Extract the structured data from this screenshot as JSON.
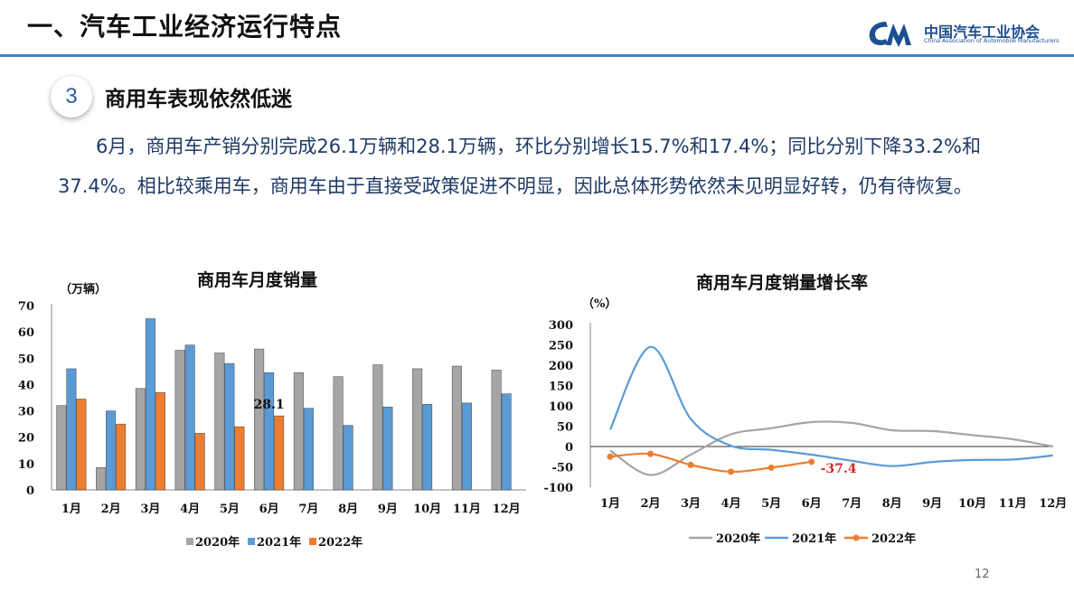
{
  "header": {
    "title": "一、汽车工业经济运行特点",
    "logo_cn": "中国汽车工业协会",
    "logo_en": "China Association of Automobile Manufacturers"
  },
  "section": {
    "number": "3",
    "title": "商用车表现依然低迷"
  },
  "body_text": "6月，商用车产销分别完成26.1万辆和28.1万辆，环比分别增长15.7%和17.4%；同比分别下降33.2%和37.4%。相比较乘用车，商用车由于直接受政策促进不明显，因此总体形势依然未见明显好转，仍有待恢复。",
  "page_number": "12",
  "colors": {
    "c2020": "#a5a5a5",
    "c2021": "#5b9bd5",
    "c2022": "#ed7d31",
    "rule": "#3a86c8"
  },
  "chart_data": [
    {
      "type": "bar",
      "title": "商用车月度销量",
      "ylabel": "（万辆）",
      "ylim": [
        0,
        70
      ],
      "yticks": [
        0,
        10,
        20,
        30,
        40,
        50,
        60,
        70
      ],
      "categories": [
        "1月",
        "2月",
        "3月",
        "4月",
        "5月",
        "6月",
        "7月",
        "8月",
        "9月",
        "10月",
        "11月",
        "12月"
      ],
      "series": [
        {
          "name": "2020年",
          "values": [
            32,
            8.5,
            38.5,
            53,
            52,
            53.5,
            44.5,
            43,
            47.5,
            46,
            47,
            45.5
          ]
        },
        {
          "name": "2021年",
          "values": [
            46,
            30,
            65,
            55,
            48,
            44.5,
            31,
            24.5,
            31.5,
            32.5,
            33,
            36.5
          ]
        },
        {
          "name": "2022年",
          "values": [
            34.5,
            25,
            37,
            21.5,
            24,
            28.1,
            null,
            null,
            null,
            null,
            null,
            null
          ]
        }
      ],
      "annotations": [
        {
          "text": "28.1"
        }
      ],
      "grid": false,
      "legend": "bottom"
    },
    {
      "type": "line",
      "title": "商用车月度销量增长率",
      "ylabel": "（%）",
      "ylim": [
        -100,
        300
      ],
      "yticks": [
        300,
        250,
        200,
        150,
        100,
        50,
        0,
        -50,
        -100
      ],
      "categories": [
        "1月",
        "2月",
        "3月",
        "4月",
        "5月",
        "6月",
        "7月",
        "8月",
        "9月",
        "10月",
        "11月",
        "12月"
      ],
      "series": [
        {
          "name": "2020年",
          "values": [
            -10,
            -70,
            -20,
            30,
            45,
            60,
            58,
            40,
            38,
            28,
            18,
            0
          ]
        },
        {
          "name": "2021年",
          "values": [
            42,
            245,
            68,
            2,
            -8,
            -20,
            -35,
            -48,
            -38,
            -33,
            -32,
            -22
          ]
        },
        {
          "name": "2022年",
          "values": [
            -25,
            -18,
            -45,
            -62,
            -52,
            -37.4,
            null,
            null,
            null,
            null,
            null,
            null
          ]
        }
      ],
      "annotations": [
        {
          "text": "-37.4"
        }
      ],
      "grid": false,
      "legend": "bottom"
    }
  ]
}
